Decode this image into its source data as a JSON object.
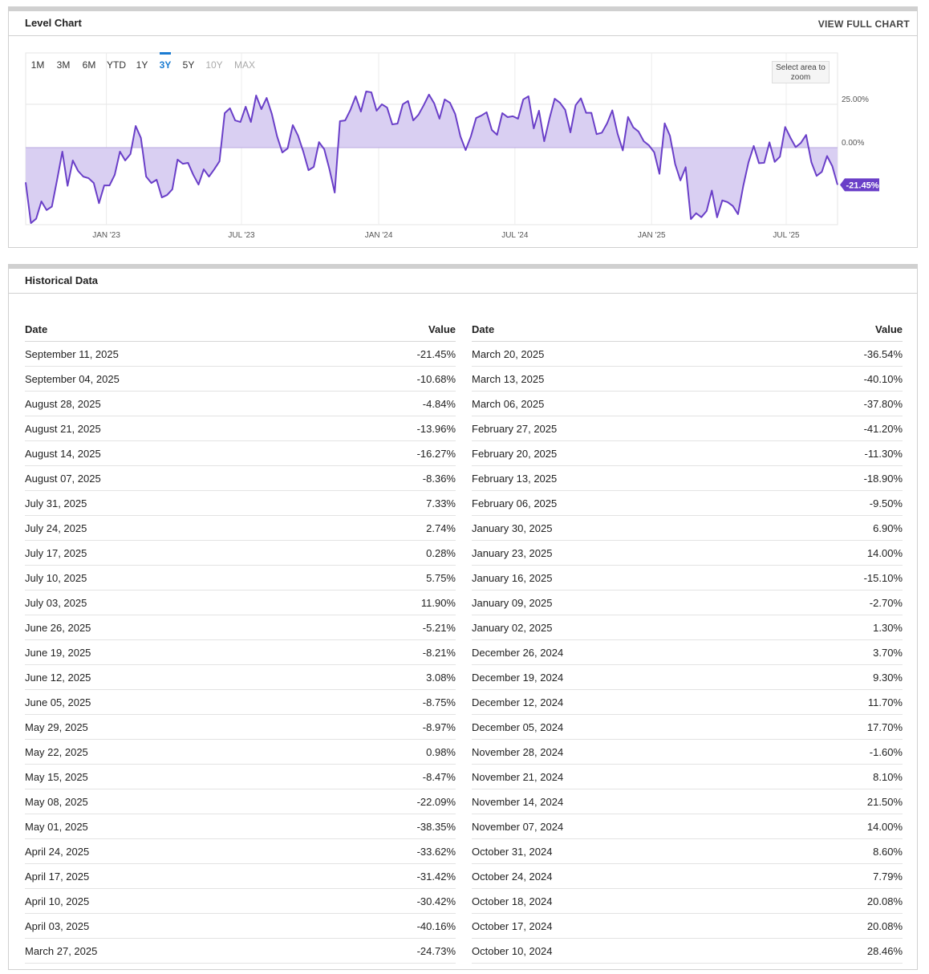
{
  "level_chart": {
    "title": "Level Chart",
    "link": "VIEW FULL CHART",
    "zoom_hint": "Select area to zoom",
    "range_buttons": [
      {
        "label": "1M"
      },
      {
        "label": "3M"
      },
      {
        "label": "6M"
      },
      {
        "label": "YTD"
      },
      {
        "label": "1Y"
      },
      {
        "label": "3Y",
        "active": true
      },
      {
        "label": "5Y"
      },
      {
        "label": "10Y",
        "disabled": true
      },
      {
        "label": "MAX",
        "disabled": true
      }
    ]
  },
  "chart_data": {
    "type": "area",
    "color": "#6a3fc8",
    "fill": "#d9cff2",
    "grid": true,
    "xlim": [
      0,
      155
    ],
    "xticks": [
      {
        "value": 15.4,
        "label": "JAN '23"
      },
      {
        "value": 41.2,
        "label": "JUL '23"
      },
      {
        "value": 67.4,
        "label": "JAN '24"
      },
      {
        "value": 93.4,
        "label": "JUL '24"
      },
      {
        "value": 119.5,
        "label": "JAN '25"
      },
      {
        "value": 145.2,
        "label": "JUL '25"
      }
    ],
    "ylim": [
      -44.4,
      54.6
    ],
    "yticks": [
      {
        "value": 25,
        "label": "25.00%"
      },
      {
        "value": 0,
        "label": "0.00%"
      }
    ],
    "values": [
      -20,
      -43.5,
      -41,
      -31,
      -36,
      -34,
      -18.5,
      -2.3,
      -22,
      -7.4,
      -13.4,
      -16.7,
      -17.6,
      -20.4,
      -32,
      -21.8,
      -21.8,
      -15.7,
      -2.3,
      -7.4,
      -3.7,
      12.5,
      5.6,
      -16.7,
      -20.4,
      -18.5,
      -28.7,
      -27.3,
      -24,
      -6.9,
      -9.3,
      -8.8,
      -15.7,
      -21.3,
      -12.5,
      -16.7,
      -12.5,
      -7.9,
      19.9,
      22.7,
      15.7,
      14.8,
      23.6,
      14.8,
      30.1,
      22.2,
      28.7,
      19.4,
      6.5,
      -2.8,
      -0.5,
      13,
      6.9,
      -2.3,
      -13,
      -11.1,
      3.2,
      -0.9,
      -12.5,
      -25.9,
      15.3,
      15.7,
      21.8,
      29.6,
      20.8,
      32.4,
      31.9,
      21.3,
      25,
      23.1,
      13.4,
      13.9,
      25,
      26.9,
      15.7,
      19,
      24.5,
      30.6,
      25.5,
      16.7,
      27.8,
      25.9,
      19.4,
      6.5,
      -1.4,
      6.5,
      17.1,
      18.5,
      20.4,
      10.2,
      7.4,
      19.9,
      17.6,
      18.1,
      16.7,
      27.8,
      29.6,
      11.1,
      21.3,
      3.7,
      16.7,
      28.2,
      25.9,
      21.8,
      8.8,
      24.5,
      28.46,
      20.08,
      20.08,
      7.79,
      8.6,
      14.0,
      21.5,
      8.1,
      -1.6,
      17.7,
      11.7,
      9.3,
      3.7,
      1.3,
      -2.7,
      -15.1,
      14.0,
      6.9,
      -9.5,
      -18.9,
      -11.3,
      -41.2,
      -37.8,
      -40.1,
      -36.54,
      -24.73,
      -40.16,
      -30.42,
      -31.42,
      -33.62,
      -38.35,
      -22.09,
      -8.47,
      0.98,
      -8.97,
      -8.75,
      3.08,
      -8.21,
      -5.21,
      11.9,
      5.75,
      0.28,
      2.74,
      7.33,
      -8.36,
      -16.27,
      -13.96,
      -4.84,
      -10.68,
      -21.45
    ],
    "last_value_label": "-21.45%"
  },
  "historical": {
    "title": "Historical Data",
    "columns": [
      "Date",
      "Value"
    ],
    "rows": [
      [
        "September 11, 2025",
        "-21.45%"
      ],
      [
        "September 04, 2025",
        "-10.68%"
      ],
      [
        "August 28, 2025",
        "-4.84%"
      ],
      [
        "August 21, 2025",
        "-13.96%"
      ],
      [
        "August 14, 2025",
        "-16.27%"
      ],
      [
        "August 07, 2025",
        "-8.36%"
      ],
      [
        "July 31, 2025",
        "7.33%"
      ],
      [
        "July 24, 2025",
        "2.74%"
      ],
      [
        "July 17, 2025",
        "0.28%"
      ],
      [
        "July 10, 2025",
        "5.75%"
      ],
      [
        "July 03, 2025",
        "11.90%"
      ],
      [
        "June 26, 2025",
        "-5.21%"
      ],
      [
        "June 19, 2025",
        "-8.21%"
      ],
      [
        "June 12, 2025",
        "3.08%"
      ],
      [
        "June 05, 2025",
        "-8.75%"
      ],
      [
        "May 29, 2025",
        "-8.97%"
      ],
      [
        "May 22, 2025",
        "0.98%"
      ],
      [
        "May 15, 2025",
        "-8.47%"
      ],
      [
        "May 08, 2025",
        "-22.09%"
      ],
      [
        "May 01, 2025",
        "-38.35%"
      ],
      [
        "April 24, 2025",
        "-33.62%"
      ],
      [
        "April 17, 2025",
        "-31.42%"
      ],
      [
        "April 10, 2025",
        "-30.42%"
      ],
      [
        "April 03, 2025",
        "-40.16%"
      ],
      [
        "March 27, 2025",
        "-24.73%"
      ],
      [
        "March 20, 2025",
        "-36.54%"
      ],
      [
        "March 13, 2025",
        "-40.10%"
      ],
      [
        "March 06, 2025",
        "-37.80%"
      ],
      [
        "February 27, 2025",
        "-41.20%"
      ],
      [
        "February 20, 2025",
        "-11.30%"
      ],
      [
        "February 13, 2025",
        "-18.90%"
      ],
      [
        "February 06, 2025",
        "-9.50%"
      ],
      [
        "January 30, 2025",
        "6.90%"
      ],
      [
        "January 23, 2025",
        "14.00%"
      ],
      [
        "January 16, 2025",
        "-15.10%"
      ],
      [
        "January 09, 2025",
        "-2.70%"
      ],
      [
        "January 02, 2025",
        "1.30%"
      ],
      [
        "December 26, 2024",
        "3.70%"
      ],
      [
        "December 19, 2024",
        "9.30%"
      ],
      [
        "December 12, 2024",
        "11.70%"
      ],
      [
        "December 05, 2024",
        "17.70%"
      ],
      [
        "November 28, 2024",
        "-1.60%"
      ],
      [
        "November 21, 2024",
        "8.10%"
      ],
      [
        "November 14, 2024",
        "21.50%"
      ],
      [
        "November 07, 2024",
        "14.00%"
      ],
      [
        "October 31, 2024",
        "8.60%"
      ],
      [
        "October 24, 2024",
        "7.79%"
      ],
      [
        "October 18, 2024",
        "20.08%"
      ],
      [
        "October 17, 2024",
        "20.08%"
      ],
      [
        "October 10, 2024",
        "28.46%"
      ]
    ]
  }
}
